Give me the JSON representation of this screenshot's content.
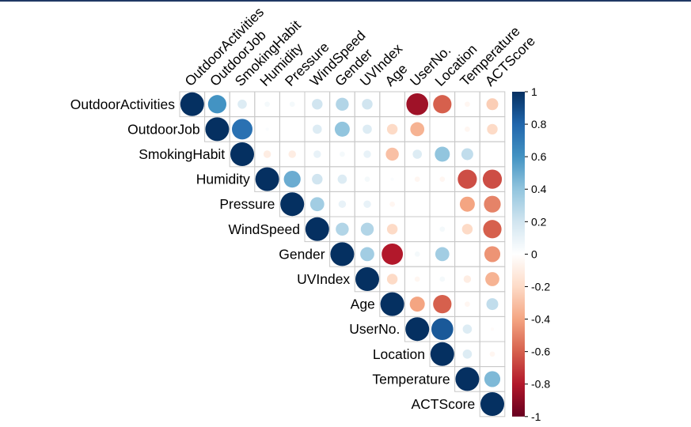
{
  "chart_data": {
    "type": "heatmap",
    "subtype": "correlation-circle-upper",
    "variables": [
      "OutdoorActivities",
      "OutdoorJob",
      "SmokingHabit",
      "Humidity",
      "Pressure",
      "WindSpeed",
      "Gender",
      "UVIndex",
      "Age",
      "UserNo.",
      "Location",
      "Temperature",
      "ACTScore"
    ],
    "matrix": [
      [
        1,
        0.6,
        0.15,
        0.05,
        0.05,
        0.2,
        0.3,
        0.2,
        0.0,
        -0.85,
        -0.6,
        -0.05,
        -0.25
      ],
      [
        0.6,
        1,
        0.75,
        0.02,
        0.0,
        0.15,
        0.4,
        0.15,
        -0.2,
        -0.35,
        0.0,
        -0.05,
        -0.2
      ],
      [
        0.15,
        0.75,
        1,
        -0.1,
        -0.1,
        0.1,
        0.05,
        0.1,
        -0.3,
        0.15,
        0.4,
        0.25,
        0.0
      ],
      [
        0.05,
        0.02,
        -0.1,
        1,
        0.5,
        0.2,
        0.15,
        0.05,
        0.02,
        -0.05,
        -0.05,
        -0.65,
        -0.65
      ],
      [
        0.05,
        0.0,
        -0.1,
        0.5,
        1,
        0.35,
        0.1,
        0.1,
        -0.05,
        0.0,
        0.0,
        -0.4,
        -0.5
      ],
      [
        0.2,
        0.15,
        0.1,
        0.2,
        0.35,
        1,
        0.3,
        0.3,
        -0.2,
        0.0,
        0.05,
        -0.2,
        -0.6
      ],
      [
        0.3,
        0.4,
        0.05,
        0.15,
        0.1,
        0.3,
        1,
        0.35,
        -0.8,
        0.05,
        0.35,
        0.0,
        -0.45
      ],
      [
        0.2,
        0.15,
        0.1,
        0.05,
        0.1,
        0.3,
        0.35,
        1,
        -0.2,
        -0.05,
        0.05,
        -0.1,
        -0.35
      ],
      [
        0.0,
        -0.2,
        -0.3,
        0.02,
        -0.05,
        -0.2,
        -0.8,
        -0.2,
        1,
        -0.4,
        -0.6,
        -0.05,
        0.25
      ],
      [
        -0.85,
        -0.35,
        0.15,
        -0.05,
        0.0,
        0.0,
        0.05,
        -0.05,
        -0.4,
        1,
        0.85,
        0.15,
        -0.02
      ],
      [
        -0.6,
        0.0,
        0.4,
        -0.05,
        0.0,
        0.05,
        0.35,
        0.05,
        -0.6,
        0.85,
        1,
        0.15,
        -0.05
      ],
      [
        -0.05,
        -0.05,
        0.25,
        -0.65,
        -0.4,
        -0.2,
        0.0,
        -0.1,
        -0.05,
        0.15,
        0.15,
        1,
        0.45
      ],
      [
        -0.25,
        -0.2,
        0.0,
        -0.65,
        -0.5,
        -0.6,
        -0.45,
        -0.35,
        0.25,
        -0.02,
        -0.05,
        0.45,
        1
      ]
    ],
    "color_scale": {
      "range": [
        -1,
        1
      ],
      "stops": [
        "#67001F",
        "#B2182B",
        "#D6604D",
        "#F4A582",
        "#FDDBC7",
        "#FFFFFF",
        "#D1E5F0",
        "#92C5DE",
        "#4393C3",
        "#2166AC",
        "#053061"
      ],
      "ticks": [
        "1",
        "0.8",
        "0.6",
        "0.4",
        "0.2",
        "0",
        "-0.2",
        "-0.4",
        "-0.6",
        "-0.8",
        "-1"
      ]
    },
    "layout": "upper-triangle",
    "grid": true,
    "legend_position": "right"
  }
}
